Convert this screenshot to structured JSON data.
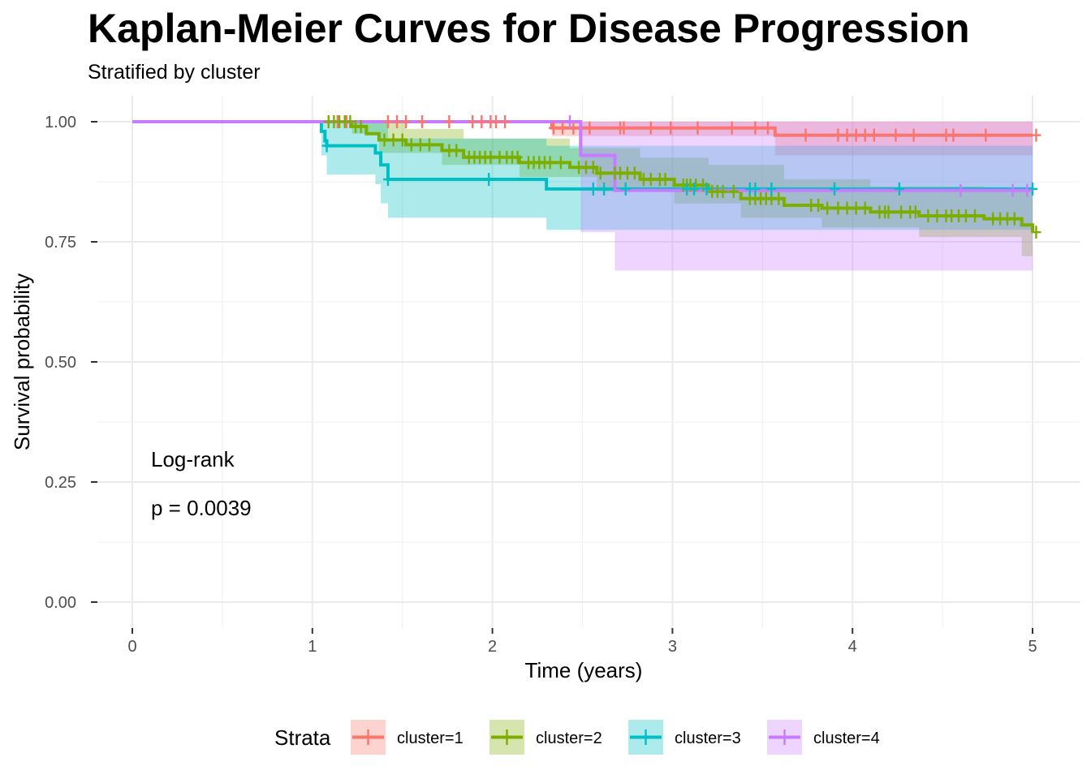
{
  "chart_data": {
    "type": "line",
    "title": "Kaplan-Meier Curves for Disease Progression",
    "subtitle": "Stratified by cluster",
    "xlabel": "Time (years)",
    "ylabel": "Survival probability",
    "xlim": [
      0,
      5
    ],
    "ylim": [
      0,
      1
    ],
    "x_ticks": [
      "0",
      "1",
      "2",
      "3",
      "4",
      "5"
    ],
    "y_ticks": [
      "0.00",
      "0.25",
      "0.50",
      "0.75",
      "1.00"
    ],
    "grid": true,
    "legend": {
      "title": "Strata",
      "position": "bottom"
    },
    "annotation": {
      "line1": "Log-rank",
      "line2": "p = 0.0039"
    },
    "series": [
      {
        "name": "cluster=1",
        "color": "#F8766D",
        "steps": [
          [
            0,
            1.0
          ],
          [
            2.33,
            0.987
          ],
          [
            3.57,
            0.972
          ],
          [
            5.0,
            0.972
          ]
        ],
        "lower": [
          [
            0,
            1.0
          ],
          [
            2.33,
            0.97
          ],
          [
            3.57,
            0.93
          ],
          [
            5.0,
            0.93
          ]
        ],
        "upper": [
          [
            0,
            1.0
          ],
          [
            2.33,
            1.0
          ],
          [
            3.57,
            1.0
          ],
          [
            5.0,
            1.0
          ]
        ],
        "censor": [
          1.14,
          1.19,
          1.42,
          1.47,
          1.52,
          1.61,
          1.76,
          1.89,
          1.94,
          1.99,
          2.02,
          2.07,
          2.34,
          2.39,
          2.45,
          2.54,
          2.71,
          2.73,
          2.88,
          2.99,
          3.14,
          3.33,
          3.46,
          3.53,
          3.74,
          3.92,
          3.97,
          4.02,
          4.07,
          4.12,
          4.24,
          4.34,
          4.52,
          4.56,
          4.74,
          5.02
        ]
      },
      {
        "name": "cluster=2",
        "color": "#7CAE00",
        "steps": [
          [
            0,
            1.0
          ],
          [
            1.22,
            0.99
          ],
          [
            1.3,
            0.975
          ],
          [
            1.37,
            0.962
          ],
          [
            1.52,
            0.952
          ],
          [
            1.72,
            0.94
          ],
          [
            1.84,
            0.926
          ],
          [
            2.15,
            0.915
          ],
          [
            2.43,
            0.905
          ],
          [
            2.58,
            0.893
          ],
          [
            2.82,
            0.88
          ],
          [
            3.01,
            0.868
          ],
          [
            3.2,
            0.855
          ],
          [
            3.38,
            0.84
          ],
          [
            3.62,
            0.826
          ],
          [
            3.83,
            0.82
          ],
          [
            4.1,
            0.812
          ],
          [
            4.37,
            0.804
          ],
          [
            4.73,
            0.798
          ],
          [
            4.94,
            0.785
          ],
          [
            5.0,
            0.77
          ]
        ],
        "lower": [
          [
            0,
            1.0
          ],
          [
            1.22,
            0.975
          ],
          [
            1.37,
            0.935
          ],
          [
            1.72,
            0.91
          ],
          [
            2.15,
            0.885
          ],
          [
            2.58,
            0.855
          ],
          [
            3.01,
            0.83
          ],
          [
            3.38,
            0.8
          ],
          [
            3.83,
            0.78
          ],
          [
            4.37,
            0.76
          ],
          [
            4.94,
            0.72
          ],
          [
            5.0,
            0.71
          ]
        ],
        "upper": [
          [
            0,
            1.0
          ],
          [
            1.3,
            1.0
          ],
          [
            1.52,
            0.985
          ],
          [
            1.84,
            0.965
          ],
          [
            2.43,
            0.945
          ],
          [
            2.82,
            0.925
          ],
          [
            3.2,
            0.91
          ],
          [
            3.62,
            0.88
          ],
          [
            4.1,
            0.865
          ],
          [
            4.73,
            0.855
          ],
          [
            5.0,
            0.84
          ]
        ],
        "censor": [
          1.09,
          1.12,
          1.15,
          1.18,
          1.21,
          1.24,
          1.27,
          1.4,
          1.45,
          1.5,
          1.55,
          1.6,
          1.65,
          1.76,
          1.8,
          1.87,
          1.9,
          1.93,
          1.96,
          1.99,
          2.04,
          2.08,
          2.11,
          2.14,
          2.2,
          2.23,
          2.26,
          2.29,
          2.32,
          2.38,
          2.48,
          2.52,
          2.56,
          2.6,
          2.68,
          2.71,
          2.75,
          2.79,
          2.84,
          2.88,
          2.93,
          2.96,
          3.06,
          3.08,
          3.1,
          3.13,
          3.17,
          3.22,
          3.25,
          3.28,
          3.34,
          3.43,
          3.46,
          3.49,
          3.52,
          3.55,
          3.59,
          3.77,
          3.81,
          3.86,
          3.92,
          3.97,
          4.02,
          4.07,
          4.15,
          4.18,
          4.2,
          4.27,
          4.32,
          4.35,
          4.42,
          4.47,
          4.52,
          4.55,
          4.59,
          4.63,
          4.68,
          4.78,
          4.82,
          4.86,
          4.9,
          5.02
        ]
      },
      {
        "name": "cluster=3",
        "color": "#00BFC4",
        "steps": [
          [
            0,
            1.0
          ],
          [
            1.05,
            0.98
          ],
          [
            1.07,
            0.96
          ],
          [
            1.08,
            0.95
          ],
          [
            1.35,
            0.935
          ],
          [
            1.38,
            0.91
          ],
          [
            1.42,
            0.88
          ],
          [
            2.3,
            0.86
          ],
          [
            5.0,
            0.86
          ]
        ],
        "lower": [
          [
            0,
            1.0
          ],
          [
            1.05,
            0.93
          ],
          [
            1.08,
            0.89
          ],
          [
            1.35,
            0.87
          ],
          [
            1.38,
            0.83
          ],
          [
            1.42,
            0.8
          ],
          [
            2.3,
            0.775
          ],
          [
            5.0,
            0.775
          ]
        ],
        "upper": [
          [
            0,
            1.0
          ],
          [
            1.35,
            1.0
          ],
          [
            1.42,
            0.965
          ],
          [
            2.3,
            0.95
          ],
          [
            5.0,
            0.95
          ]
        ],
        "censor": [
          1.08,
          1.42,
          1.98,
          2.56,
          2.62,
          2.74,
          3.08,
          3.12,
          3.19,
          3.43,
          3.46,
          3.55,
          3.9,
          4.26,
          5.0
        ]
      },
      {
        "name": "cluster=4",
        "color": "#C77CFF",
        "steps": [
          [
            0,
            1.0
          ],
          [
            2.49,
            0.93
          ],
          [
            2.68,
            0.857
          ],
          [
            5.0,
            0.857
          ]
        ],
        "lower": [
          [
            0,
            1.0
          ],
          [
            2.49,
            0.77
          ],
          [
            2.68,
            0.69
          ],
          [
            5.0,
            0.69
          ]
        ],
        "upper": [
          [
            0,
            1.0
          ],
          [
            5.0,
            1.0
          ]
        ],
        "censor": [
          2.43,
          4.6,
          4.89,
          4.97
        ]
      }
    ]
  }
}
